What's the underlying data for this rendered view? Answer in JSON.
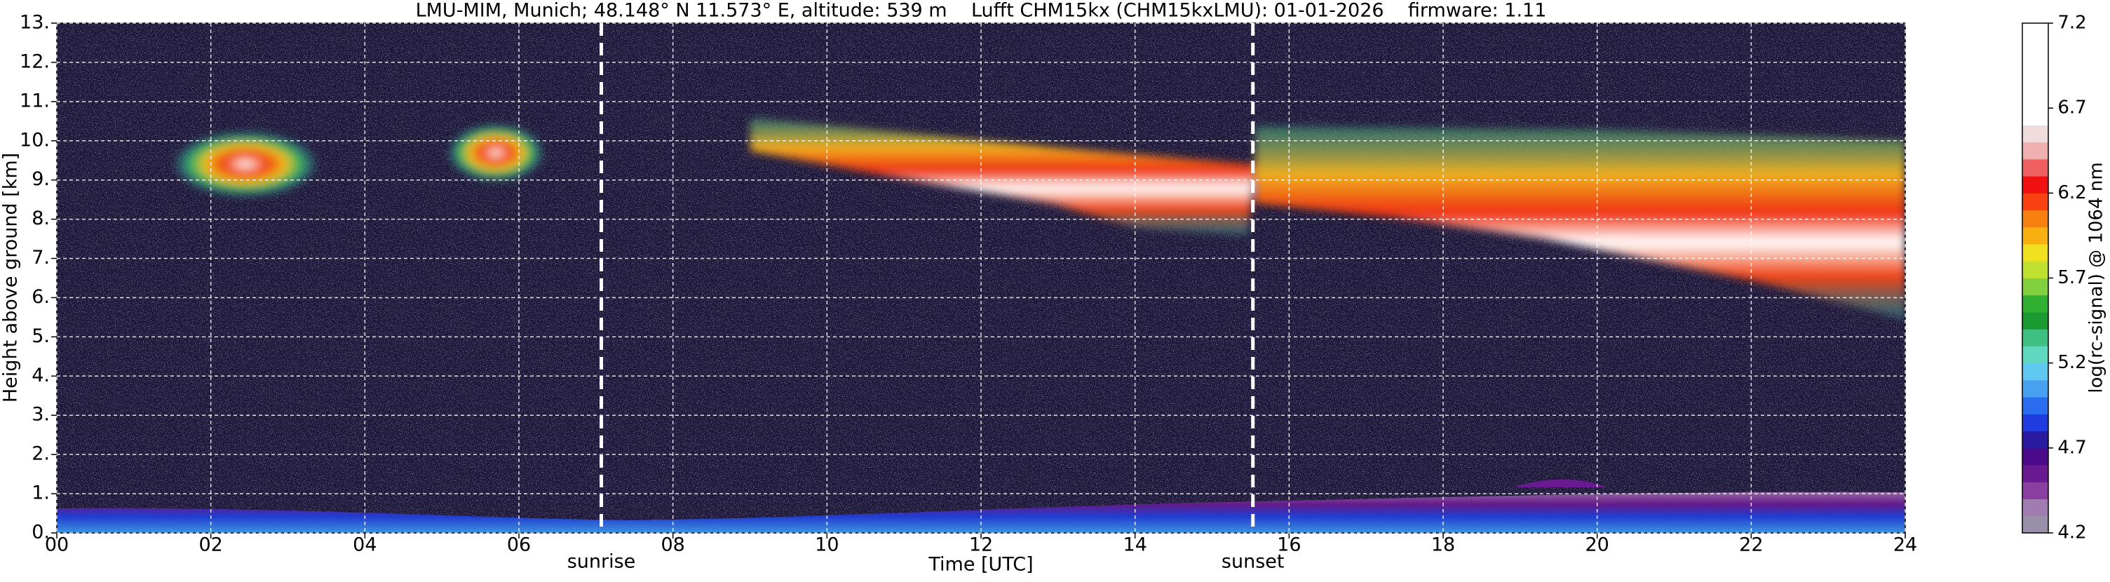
{
  "chart_data": {
    "type": "heatmap",
    "title": "LMU-MIM, Munich; 48.148° N 11.573° E, altitude: 539 m    Lufft CHM15kx (CHM15kxLMU): 01-01-2026    firmware: 1.11",
    "x_label": "Time [UTC]",
    "y_label": "Height above ground [km]",
    "xlim": [
      0,
      24
    ],
    "xticks": [
      {
        "value": 0,
        "label": "00"
      },
      {
        "value": 2,
        "label": "02"
      },
      {
        "value": 4,
        "label": "04"
      },
      {
        "value": 6,
        "label": "06"
      },
      {
        "value": 8,
        "label": "08"
      },
      10,
      12,
      14,
      16,
      18,
      20,
      22,
      24
    ],
    "ylim": [
      0,
      13
    ],
    "yticks": [
      {
        "value": 0,
        "label": "0."
      },
      {
        "value": 1,
        "label": "1."
      },
      {
        "value": 2,
        "label": "2."
      },
      {
        "value": 3,
        "label": "3."
      },
      {
        "value": 4,
        "label": "4."
      },
      {
        "value": 5,
        "label": "5."
      },
      {
        "value": 6,
        "label": "6."
      },
      {
        "value": 7,
        "label": "7."
      },
      {
        "value": 8,
        "label": "8."
      },
      {
        "value": 9,
        "label": "9."
      },
      {
        "value": 10,
        "label": "10."
      },
      {
        "value": 11,
        "label": "11."
      },
      {
        "value": 12,
        "label": "12."
      },
      {
        "value": 13,
        "label": "13."
      }
    ],
    "grid": true,
    "annotations": [
      {
        "x": 7.07,
        "label": "sunrise"
      },
      {
        "x": 15.53,
        "label": "sunset"
      }
    ],
    "colorbar": {
      "label": "log(rc-signal) @ 1064 nm",
      "lim": [
        4.2,
        7.2
      ],
      "ticks": [
        4.2,
        4.7,
        5.2,
        5.7,
        6.2,
        6.7,
        7.2
      ],
      "colors": [
        "#9a8fa8",
        "#a07cb0",
        "#8a3fa0",
        "#6a1a90",
        "#4a0a8a",
        "#2a1aa0",
        "#1e3ce0",
        "#2a6cf0",
        "#4aa0f0",
        "#60c8f0",
        "#60d8c0",
        "#40c080",
        "#1a9a30",
        "#30b030",
        "#80d040",
        "#c0e030",
        "#f0e020",
        "#f8b010",
        "#f88010",
        "#f84010",
        "#f01010",
        "#f06060",
        "#f0b0b0",
        "#f0dcdc",
        "#ffffff",
        "#ffffff",
        "#ffffff",
        "#ffffff",
        "#ffffff",
        "#ffffff"
      ]
    }
  }
}
